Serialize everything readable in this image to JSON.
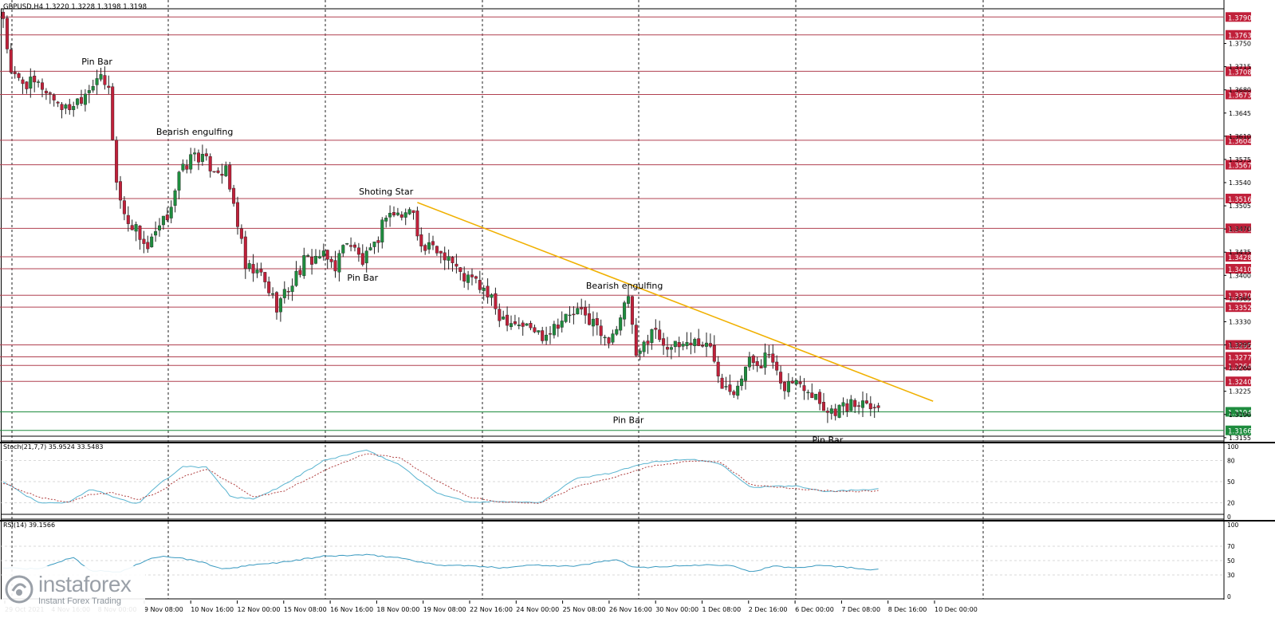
{
  "symbol_header": "GBPUSD,H4  1.3220 1.3228 1.3198 1.3198",
  "colors": {
    "background": "#ffffff",
    "bull": "#1e8c3e",
    "bear": "#c0203a",
    "level_line": "#b04050",
    "level_label_bg": "#c0203a",
    "support_label_bg": "#1e8c3e",
    "trendline": "#f0b000",
    "stoch_main": "#5ab4d0",
    "stoch_signal": "#b04040",
    "rsi": "#3a9ac0"
  },
  "watermark": {
    "brand": "instaforex",
    "tagline": "Instant Forex Trading",
    "icon": "instaforex-logo-icon"
  },
  "chart_data": [
    {
      "type": "candlestick",
      "title": "GBPUSD,H4",
      "header_values": [
        "1.3220",
        "1.3228",
        "1.3198",
        "1.3198"
      ],
      "ylim": [
        1.315,
        1.38
      ],
      "price_ticks": [
        "1.3750",
        "1.3715",
        "1.3680",
        "1.3645",
        "1.3610",
        "1.3575",
        "1.3540",
        "1.3505",
        "1.3470",
        "1.3435",
        "1.3400",
        "1.3365",
        "1.3330",
        "1.3295",
        "1.3260",
        "1.3225",
        "1.3190",
        "1.3155"
      ],
      "x_labels": [
        "29 Oct 2021",
        "4 Nov 16:00",
        "8 Nov 00:00",
        "9 Nov 08:00",
        "10 Nov 16:00",
        "12 Nov 00:00",
        "15 Nov 08:00",
        "16 Nov 16:00",
        "18 Nov 00:00",
        "19 Nov 08:00",
        "22 Nov 16:00",
        "24 Nov 00:00",
        "25 Nov 08:00",
        "26 Nov 16:00",
        "30 Nov 00:00",
        "1 Dec 08:00",
        "2 Dec 16:00",
        "6 Dec 00:00",
        "7 Dec 08:00",
        "8 Dec 16:00",
        "10 Dec 00:00"
      ],
      "levels": [
        {
          "value": 1.379,
          "label": "1.3790",
          "kind": "resistance"
        },
        {
          "value": 1.3763,
          "label": "1.3763",
          "kind": "resistance"
        },
        {
          "value": 1.3708,
          "label": "1.3708",
          "kind": "resistance"
        },
        {
          "value": 1.3673,
          "label": "1.3673",
          "kind": "resistance"
        },
        {
          "value": 1.3604,
          "label": "1.3604",
          "kind": "resistance"
        },
        {
          "value": 1.3567,
          "label": "1.3567",
          "kind": "resistance"
        },
        {
          "value": 1.3516,
          "label": "1.3516",
          "kind": "resistance"
        },
        {
          "value": 1.3471,
          "label": "1.3471",
          "kind": "resistance"
        },
        {
          "value": 1.3428,
          "label": "1.3428",
          "kind": "resistance"
        },
        {
          "value": 1.341,
          "label": "1.3410",
          "kind": "resistance"
        },
        {
          "value": 1.337,
          "label": "1.3370",
          "kind": "resistance"
        },
        {
          "value": 1.3352,
          "label": "1.3352",
          "kind": "resistance"
        },
        {
          "value": 1.3295,
          "label": "1.3295",
          "kind": "resistance"
        },
        {
          "value": 1.3277,
          "label": "1.3277",
          "kind": "resistance"
        },
        {
          "value": 1.3264,
          "label": "1.3264",
          "kind": "resistance"
        },
        {
          "value": 1.324,
          "label": "1.3240",
          "kind": "resistance"
        },
        {
          "value": 1.3194,
          "label": "1.3194",
          "kind": "support"
        },
        {
          "value": 1.3166,
          "label": "1.3166",
          "kind": "support"
        }
      ],
      "trendline": {
        "start_bar": 106,
        "start_price": 1.351,
        "end_bar": 238,
        "end_price": 1.321
      },
      "annotations": [
        {
          "text": "Pin Bar",
          "bar": 24,
          "price": 1.3718
        },
        {
          "text": "Bearish engulfing",
          "bar": 49,
          "price": 1.3612
        },
        {
          "text": "Shoting Star",
          "bar": 98,
          "price": 1.3522
        },
        {
          "text": "Pin Bar",
          "bar": 92,
          "price": 1.3392
        },
        {
          "text": "Bearish engulfing",
          "bar": 159,
          "price": 1.338
        },
        {
          "text": "Pin Bar",
          "bar": 160,
          "price": 1.3177
        },
        {
          "text": "Pin Bar",
          "bar": 211,
          "price": 1.3147
        }
      ],
      "series": [
        {
          "name": "GBPUSD",
          "anchors": [
            [
              0,
              1.379
            ],
            [
              2,
              1.37
            ],
            [
              6,
              1.369
            ],
            [
              10,
              1.3685
            ],
            [
              16,
              1.365
            ],
            [
              20,
              1.367
            ],
            [
              24,
              1.37
            ],
            [
              27,
              1.368
            ],
            [
              29,
              1.354
            ],
            [
              31,
              1.349
            ],
            [
              34,
              1.347
            ],
            [
              37,
              1.344
            ],
            [
              42,
              1.349
            ],
            [
              45,
              1.355
            ],
            [
              49,
              1.3585
            ],
            [
              53,
              1.3565
            ],
            [
              57,
              1.3555
            ],
            [
              60,
              1.348
            ],
            [
              62,
              1.341
            ],
            [
              66,
              1.34
            ],
            [
              70,
              1.3355
            ],
            [
              73,
              1.338
            ],
            [
              77,
              1.342
            ],
            [
              81,
              1.343
            ],
            [
              85,
              1.3415
            ],
            [
              88,
              1.3455
            ],
            [
              92,
              1.342
            ],
            [
              95,
              1.344
            ],
            [
              98,
              1.3495
            ],
            [
              102,
              1.349
            ],
            [
              105,
              1.35
            ],
            [
              107,
              1.344
            ],
            [
              110,
              1.344
            ],
            [
              114,
              1.343
            ],
            [
              117,
              1.34
            ],
            [
              121,
              1.339
            ],
            [
              124,
              1.337
            ],
            [
              127,
              1.334
            ],
            [
              131,
              1.333
            ],
            [
              135,
              1.332
            ],
            [
              138,
              1.331
            ],
            [
              142,
              1.333
            ],
            [
              147,
              1.3345
            ],
            [
              151,
              1.333
            ],
            [
              154,
              1.33
            ],
            [
              158,
              1.333
            ],
            [
              160,
              1.337
            ],
            [
              162,
              1.327
            ],
            [
              166,
              1.332
            ],
            [
              169,
              1.33
            ],
            [
              172,
              1.329
            ],
            [
              175,
              1.33
            ],
            [
              178,
              1.33
            ],
            [
              181,
              1.329
            ],
            [
              184,
              1.324
            ],
            [
              187,
              1.323
            ],
            [
              191,
              1.327
            ],
            [
              194,
              1.327
            ],
            [
              196,
              1.328
            ],
            [
              199,
              1.323
            ],
            [
              202,
              1.324
            ],
            [
              205,
              1.3235
            ],
            [
              208,
              1.322
            ],
            [
              211,
              1.3195
            ],
            [
              214,
              1.32
            ],
            [
              218,
              1.3205
            ],
            [
              221,
              1.3215
            ],
            [
              224,
              1.3198
            ]
          ]
        }
      ]
    },
    {
      "type": "line",
      "title": "Stoch(21,7,7) 35.9524 33.5483",
      "ylim": [
        0,
        100
      ],
      "y_ticks": [
        "100",
        "80",
        "50",
        "20",
        "0"
      ],
      "series": [
        {
          "name": "main",
          "anchors": [
            [
              0,
              50
            ],
            [
              12,
              20
            ],
            [
              22,
              20
            ],
            [
              30,
              40
            ],
            [
              38,
              28
            ],
            [
              46,
              18
            ],
            [
              54,
              48
            ],
            [
              62,
              72
            ],
            [
              70,
              70
            ],
            [
              78,
              28
            ],
            [
              86,
              25
            ],
            [
              96,
              45
            ],
            [
              110,
              80
            ],
            [
              124,
              95
            ],
            [
              136,
              74
            ],
            [
              148,
              35
            ],
            [
              160,
              20
            ],
            [
              170,
              22
            ],
            [
              184,
              20
            ],
            [
              196,
              54
            ],
            [
              208,
              62
            ],
            [
              222,
              78
            ],
            [
              236,
              82
            ],
            [
              246,
              76
            ],
            [
              256,
              42
            ],
            [
              264,
              43
            ],
            [
              272,
              44
            ],
            [
              282,
              36
            ],
            [
              292,
              38
            ],
            [
              300,
              40
            ]
          ]
        },
        {
          "name": "signal",
          "anchors": [
            [
              0,
              48
            ],
            [
              12,
              28
            ],
            [
              22,
              20
            ],
            [
              30,
              32
            ],
            [
              38,
              34
            ],
            [
              46,
              24
            ],
            [
              54,
              36
            ],
            [
              62,
              58
            ],
            [
              70,
              68
            ],
            [
              78,
              48
            ],
            [
              86,
              28
            ],
            [
              96,
              36
            ],
            [
              110,
              66
            ],
            [
              124,
              90
            ],
            [
              136,
              84
            ],
            [
              148,
              52
            ],
            [
              160,
              28
            ],
            [
              170,
              21
            ],
            [
              184,
              20
            ],
            [
              196,
              42
            ],
            [
              208,
              55
            ],
            [
              222,
              72
            ],
            [
              236,
              80
            ],
            [
              246,
              78
            ],
            [
              256,
              46
            ],
            [
              264,
              42
            ],
            [
              272,
              40
            ],
            [
              282,
              37
            ],
            [
              292,
              36
            ],
            [
              300,
              37
            ]
          ]
        }
      ]
    },
    {
      "type": "line",
      "title": "RSI(14) 39.1566",
      "ylim": [
        0,
        100
      ],
      "y_ticks": [
        "100",
        "70",
        "50",
        "30",
        "0"
      ],
      "series": [
        {
          "name": "RSI",
          "anchors": [
            [
              0,
              40
            ],
            [
              12,
              38
            ],
            [
              24,
              55
            ],
            [
              30,
              36
            ],
            [
              40,
              34
            ],
            [
              50,
              52
            ],
            [
              56,
              56
            ],
            [
              66,
              50
            ],
            [
              76,
              38
            ],
            [
              86,
              44
            ],
            [
              96,
              48
            ],
            [
              110,
              56
            ],
            [
              124,
              58
            ],
            [
              136,
              54
            ],
            [
              148,
              44
            ],
            [
              158,
              43
            ],
            [
              170,
              40
            ],
            [
              182,
              44
            ],
            [
              196,
              42
            ],
            [
              210,
              52
            ],
            [
              216,
              40
            ],
            [
              228,
              42
            ],
            [
              240,
              44
            ],
            [
              250,
              44
            ],
            [
              256,
              34
            ],
            [
              264,
              42
            ],
            [
              272,
              40
            ],
            [
              280,
              44
            ],
            [
              296,
              38
            ]
          ]
        }
      ]
    }
  ]
}
